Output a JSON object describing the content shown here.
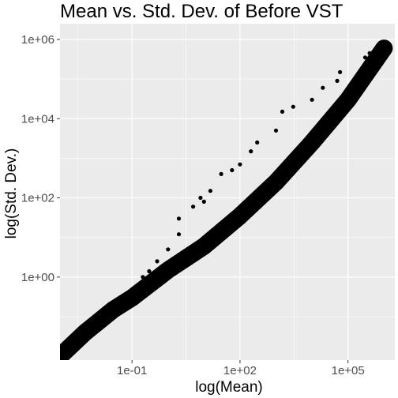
{
  "chart_data": {
    "type": "scatter",
    "title": "Mean vs. Std. Dev. of Before VST",
    "xlabel": "log(Mean)",
    "ylabel": "log(Std. Dev.)",
    "x_scale": "log10",
    "y_scale": "log10",
    "xlim": [
      0.001,
      2000000
    ],
    "ylim": [
      0.008,
      2500000
    ],
    "x_ticks": [
      {
        "value": 0.1,
        "label": "1e-01"
      },
      {
        "value": 100,
        "label": "1e+02"
      },
      {
        "value": 100000,
        "label": "1e+05"
      }
    ],
    "y_ticks": [
      {
        "value": 1,
        "label": "1e+00"
      },
      {
        "value": 100,
        "label": "1e+02"
      },
      {
        "value": 10000,
        "label": "1e+04"
      },
      {
        "value": 1000000,
        "label": "1e+06"
      }
    ],
    "grid": true,
    "point_color": "#000000",
    "panel_color": "#ebebeb",
    "grid_color": "#ffffff",
    "trend": [
      [
        0.001,
        0.01
      ],
      [
        0.005,
        0.04
      ],
      [
        0.03,
        0.15
      ],
      [
        0.1,
        0.3
      ],
      [
        1,
        1.5
      ],
      [
        10,
        6
      ],
      [
        100,
        35
      ],
      [
        1000,
        250
      ],
      [
        10000,
        2500
      ],
      [
        100000,
        30000
      ],
      [
        1000000,
        600000
      ]
    ],
    "points": [
      [
        0.001,
        0.01
      ],
      [
        0.005,
        0.035
      ],
      [
        0.01,
        0.055
      ],
      [
        0.015,
        0.07
      ],
      [
        0.02,
        0.09
      ],
      [
        0.03,
        0.11
      ],
      [
        0.05,
        0.14
      ],
      [
        0.07,
        0.18
      ],
      [
        0.1,
        0.25
      ],
      [
        0.15,
        0.3
      ],
      [
        0.2,
        0.45
      ],
      [
        0.3,
        0.6
      ],
      [
        0.5,
        0.9
      ],
      [
        0.05,
        0.28
      ],
      [
        0.03,
        0.22
      ],
      [
        0.2,
        1.0
      ],
      [
        0.3,
        1.4
      ],
      [
        0.5,
        2.5
      ],
      [
        1.0,
        5.0
      ],
      [
        2.0,
        12.0
      ],
      [
        2.0,
        30.0
      ],
      [
        5.0,
        60.0
      ],
      [
        10.0,
        80.0
      ],
      [
        8.0,
        100.0
      ],
      [
        15.0,
        150.0
      ],
      [
        30.0,
        400.0
      ],
      [
        60.0,
        500.0
      ],
      [
        100.0,
        700.0
      ],
      [
        200.0,
        1500.0
      ],
      [
        300.0,
        2500.0
      ],
      [
        1000.0,
        5000.0
      ],
      [
        1500.0,
        15000.0
      ],
      [
        3000.0,
        20000.0
      ],
      [
        10000.0,
        30000.0
      ],
      [
        20000.0,
        60000.0
      ],
      [
        50000.0,
        90000.0
      ],
      [
        60000.0,
        150000.0
      ],
      [
        300000.0,
        350000.0
      ],
      [
        400000.0,
        450000.0
      ],
      [
        1000000.0,
        750000.0
      ]
    ]
  }
}
